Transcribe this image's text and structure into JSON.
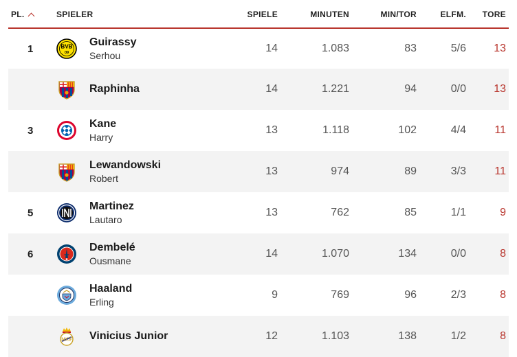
{
  "header": {
    "rank": "PL.",
    "player": "SPIELER",
    "games": "SPIELE",
    "minutes": "MINUTEN",
    "min_per_goal": "MIN/TOR",
    "penalties": "ELFM.",
    "goals": "TORE"
  },
  "colors": {
    "accent": "#b8342c"
  },
  "rows": [
    {
      "rank": "1",
      "last": "Guirassy",
      "first": "Serhou",
      "club_icon": "bvb-crest-icon",
      "games": "14",
      "minutes": "1.083",
      "min_per_goal": "83",
      "penalties": "5/6",
      "goals": "13"
    },
    {
      "rank": "",
      "last": "Raphinha",
      "first": "",
      "club_icon": "fcb-barcelona-crest-icon",
      "games": "14",
      "minutes": "1.221",
      "min_per_goal": "94",
      "penalties": "0/0",
      "goals": "13"
    },
    {
      "rank": "3",
      "last": "Kane",
      "first": "Harry",
      "club_icon": "bayern-crest-icon",
      "games": "13",
      "minutes": "1.118",
      "min_per_goal": "102",
      "penalties": "4/4",
      "goals": "11"
    },
    {
      "rank": "",
      "last": "Lewandowski",
      "first": "Robert",
      "club_icon": "fcb-barcelona-crest-icon",
      "games": "13",
      "minutes": "974",
      "min_per_goal": "89",
      "penalties": "3/3",
      "goals": "11"
    },
    {
      "rank": "5",
      "last": "Martinez",
      "first": "Lautaro",
      "club_icon": "inter-crest-icon",
      "games": "13",
      "minutes": "762",
      "min_per_goal": "85",
      "penalties": "1/1",
      "goals": "9"
    },
    {
      "rank": "6",
      "last": "Dembelé",
      "first": "Ousmane",
      "club_icon": "psg-crest-icon",
      "games": "14",
      "minutes": "1.070",
      "min_per_goal": "134",
      "penalties": "0/0",
      "goals": "8"
    },
    {
      "rank": "",
      "last": "Haaland",
      "first": "Erling",
      "club_icon": "man-city-crest-icon",
      "games": "9",
      "minutes": "769",
      "min_per_goal": "96",
      "penalties": "2/3",
      "goals": "8"
    },
    {
      "rank": "",
      "last": "Vinicius Junior",
      "first": "",
      "club_icon": "real-madrid-crest-icon",
      "games": "12",
      "minutes": "1.103",
      "min_per_goal": "138",
      "penalties": "1/2",
      "goals": "8"
    }
  ]
}
